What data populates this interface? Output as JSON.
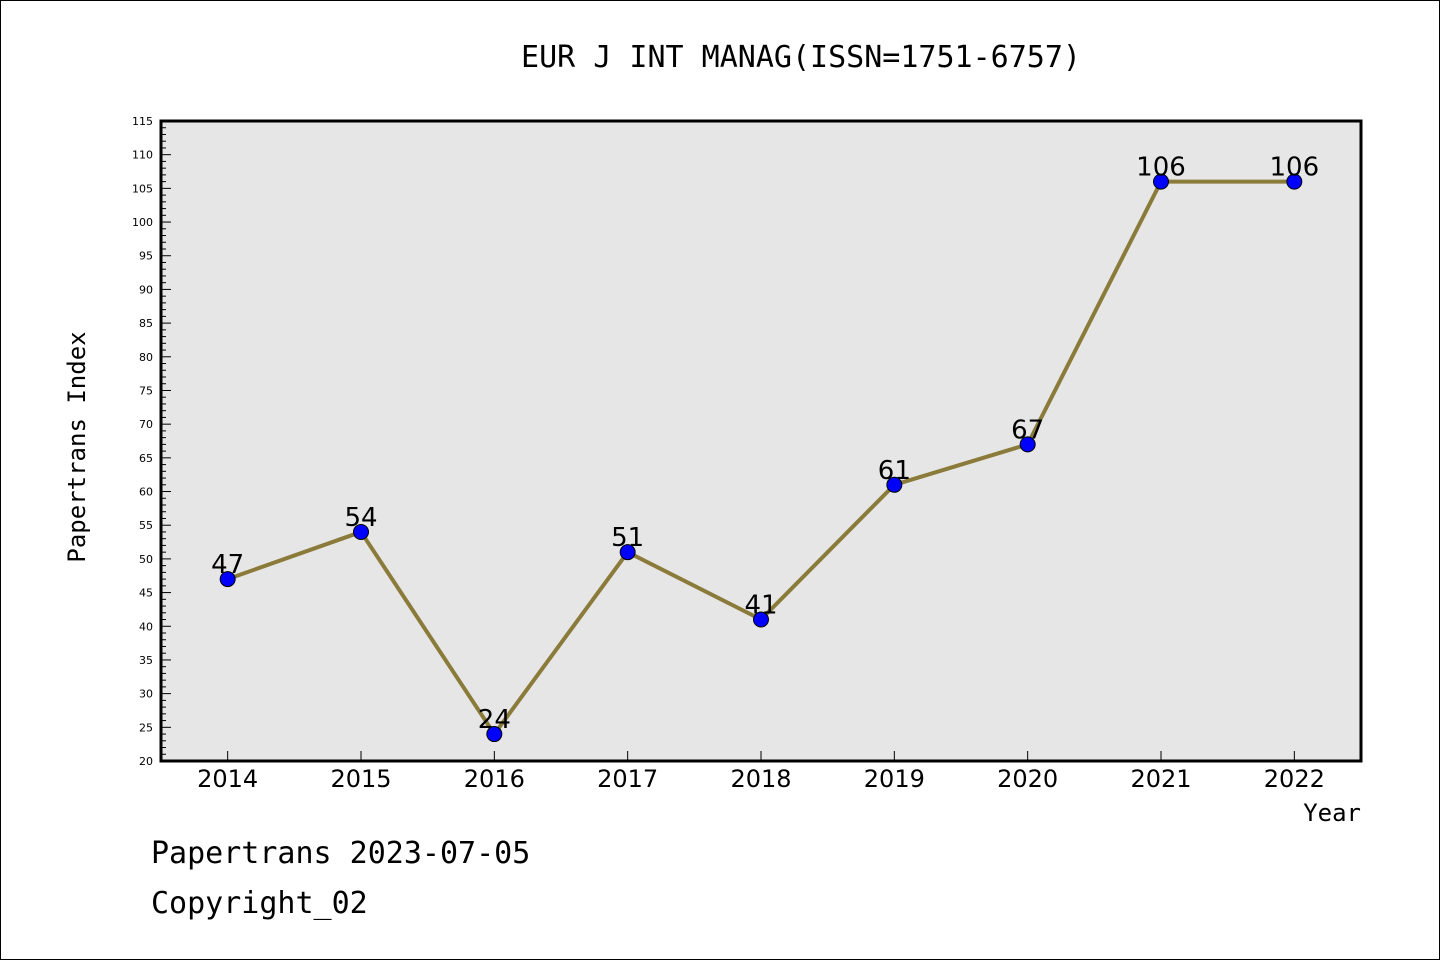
{
  "chart_data": {
    "type": "line",
    "title": "EUR J INT MANAG(ISSN=1751-6757)",
    "xlabel": "Year",
    "ylabel": "Papertrans Index",
    "categories": [
      "2014",
      "2015",
      "2016",
      "2017",
      "2018",
      "2019",
      "2020",
      "2021",
      "2022"
    ],
    "values": [
      47,
      54,
      24,
      51,
      41,
      61,
      67,
      106,
      106
    ],
    "data_labels": [
      "47",
      "54",
      "24",
      "51",
      "41",
      "61",
      "67",
      "106",
      "106"
    ],
    "ylim": [
      20,
      115
    ],
    "yticks": [
      20,
      25,
      30,
      35,
      40,
      45,
      50,
      55,
      60,
      65,
      70,
      75,
      80,
      85,
      90,
      95,
      100,
      105,
      110,
      115
    ],
    "grid": false,
    "legend": "none",
    "colors": {
      "line": "#8B7B3A",
      "marker": "#0000FF",
      "plot_background": "#E6E6E6"
    }
  },
  "footer": {
    "line1": "Papertrans 2023-07-05",
    "line2": "Copyright_02"
  }
}
